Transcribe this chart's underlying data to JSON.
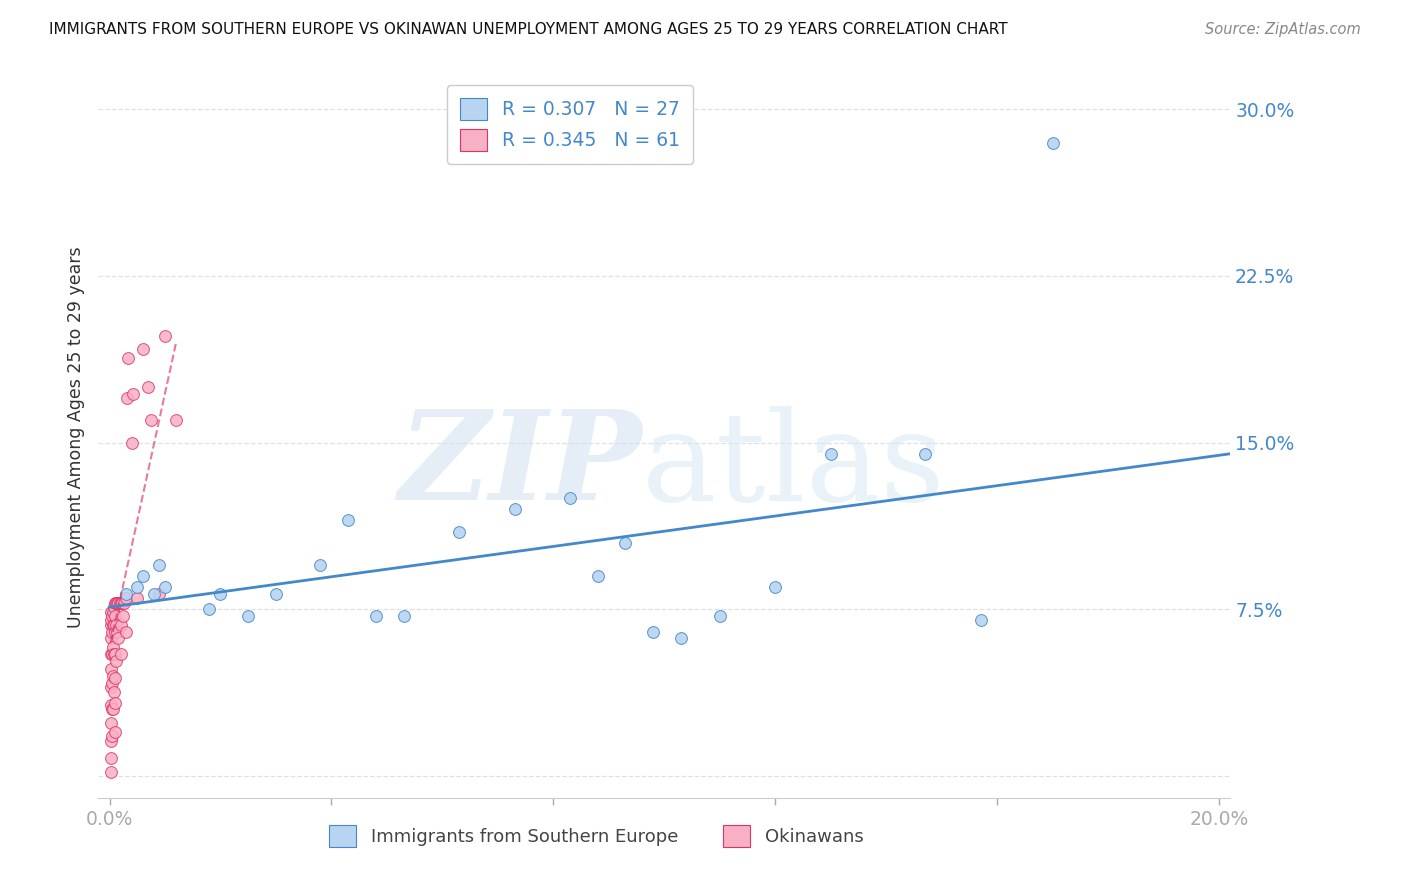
{
  "title": "IMMIGRANTS FROM SOUTHERN EUROPE VS OKINAWAN UNEMPLOYMENT AMONG AGES 25 TO 29 YEARS CORRELATION CHART",
  "source": "Source: ZipAtlas.com",
  "xlabel_blue": "Immigrants from Southern Europe",
  "xlabel_pink": "Okinawans",
  "ylabel": "Unemployment Among Ages 25 to 29 years",
  "legend_blue_r": "R = 0.307",
  "legend_blue_n": "N = 27",
  "legend_pink_r": "R = 0.345",
  "legend_pink_n": "N = 61",
  "xlim": [
    -0.002,
    0.202
  ],
  "ylim": [
    -0.01,
    0.315
  ],
  "yticks": [
    0.0,
    0.075,
    0.15,
    0.225,
    0.3
  ],
  "ytick_labels": [
    "",
    "7.5%",
    "15.0%",
    "22.5%",
    "30.0%"
  ],
  "xticks": [
    0.0,
    0.04,
    0.08,
    0.12,
    0.16,
    0.2
  ],
  "xtick_labels": [
    "0.0%",
    "",
    "",
    "",
    "",
    "20.0%"
  ],
  "blue_scatter_x": [
    0.003,
    0.005,
    0.006,
    0.008,
    0.009,
    0.01,
    0.018,
    0.02,
    0.025,
    0.03,
    0.038,
    0.043,
    0.048,
    0.053,
    0.063,
    0.073,
    0.083,
    0.088,
    0.093,
    0.098,
    0.103,
    0.11,
    0.12,
    0.13,
    0.147,
    0.157,
    0.17
  ],
  "blue_scatter_y": [
    0.082,
    0.085,
    0.09,
    0.082,
    0.095,
    0.085,
    0.075,
    0.082,
    0.072,
    0.082,
    0.095,
    0.115,
    0.072,
    0.072,
    0.11,
    0.12,
    0.125,
    0.09,
    0.105,
    0.065,
    0.062,
    0.072,
    0.085,
    0.145,
    0.145,
    0.07,
    0.285
  ],
  "pink_scatter_x": [
    0.0002,
    0.0002,
    0.0002,
    0.0002,
    0.0002,
    0.0002,
    0.0002,
    0.0002,
    0.0002,
    0.0002,
    0.0002,
    0.0002,
    0.0004,
    0.0004,
    0.0004,
    0.0004,
    0.0004,
    0.0004,
    0.0006,
    0.0006,
    0.0006,
    0.0006,
    0.0006,
    0.0008,
    0.0008,
    0.0008,
    0.0008,
    0.001,
    0.001,
    0.001,
    0.001,
    0.001,
    0.001,
    0.001,
    0.0012,
    0.0012,
    0.0012,
    0.0014,
    0.0014,
    0.0016,
    0.0016,
    0.0018,
    0.002,
    0.002,
    0.002,
    0.0022,
    0.0024,
    0.0026,
    0.003,
    0.003,
    0.0032,
    0.0034,
    0.004,
    0.0042,
    0.005,
    0.006,
    0.007,
    0.0075,
    0.009,
    0.01,
    0.012
  ],
  "pink_scatter_y": [
    0.068,
    0.062,
    0.055,
    0.048,
    0.04,
    0.032,
    0.024,
    0.016,
    0.008,
    0.002,
    0.07,
    0.074,
    0.072,
    0.065,
    0.055,
    0.042,
    0.03,
    0.018,
    0.074,
    0.068,
    0.058,
    0.045,
    0.03,
    0.076,
    0.068,
    0.055,
    0.038,
    0.078,
    0.072,
    0.065,
    0.055,
    0.044,
    0.033,
    0.02,
    0.078,
    0.068,
    0.052,
    0.078,
    0.065,
    0.078,
    0.062,
    0.078,
    0.078,
    0.068,
    0.055,
    0.078,
    0.072,
    0.078,
    0.08,
    0.065,
    0.17,
    0.188,
    0.15,
    0.172,
    0.08,
    0.192,
    0.175,
    0.16,
    0.082,
    0.198,
    0.16
  ],
  "blue_line_x": [
    0.0,
    0.202
  ],
  "blue_line_y": [
    0.076,
    0.145
  ],
  "pink_line_x": [
    0.0002,
    0.012
  ],
  "pink_line_y": [
    0.06,
    0.195
  ],
  "blue_color": "#b8d4f0",
  "pink_color": "#f8b0c4",
  "blue_line_color": "#4488cc",
  "pink_line_color": "#dd3366",
  "marker_size": 72,
  "watermark_zip": "ZIP",
  "watermark_atlas": "atlas",
  "background_color": "#ffffff",
  "grid_color": "#e0e0e0"
}
